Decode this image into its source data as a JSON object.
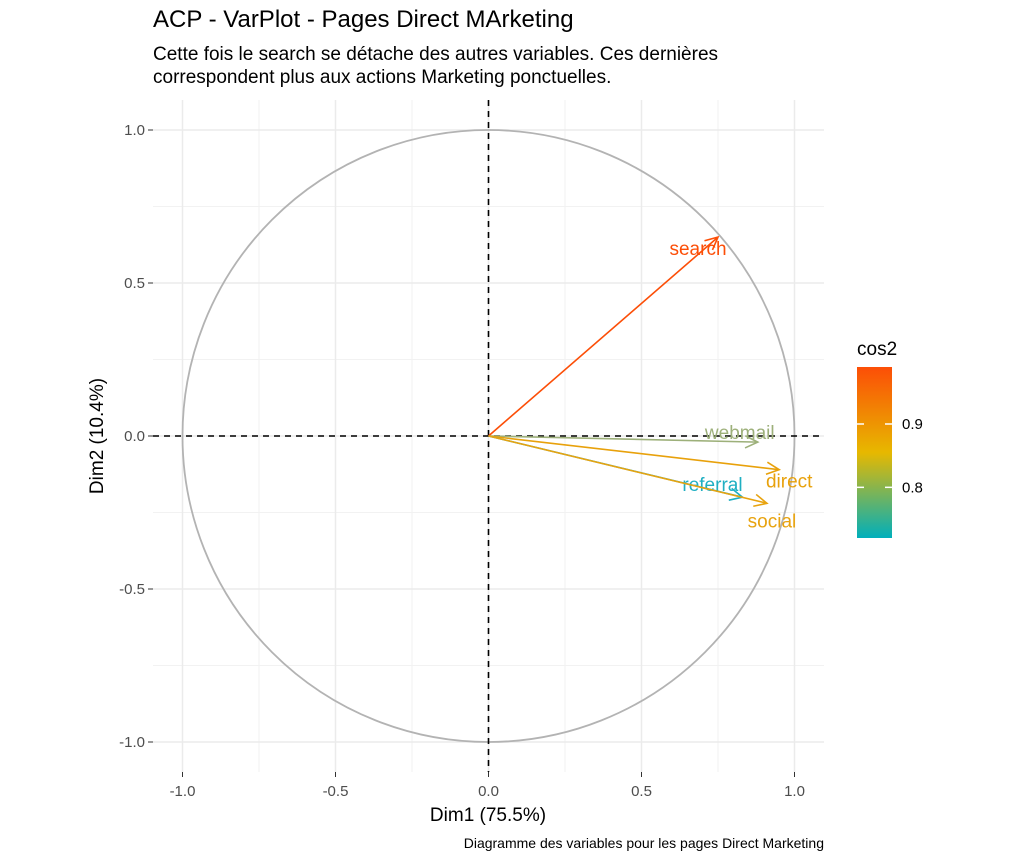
{
  "header": {
    "title": "ACP - VarPlot - Pages Direct MArketing",
    "subtitle_lines": [
      "Cette fois le search se détache des autres variables. Ces dernières",
      "correspondent plus aux actions Marketing ponctuelles."
    ]
  },
  "caption": "Diagramme des variables pour les pages Direct Marketing",
  "chart_data": {
    "type": "scatter",
    "subtype": "pca-variable-correlation-circle",
    "title": "ACP - VarPlot - Pages Direct MArketing",
    "xlabel": "Dim1 (75.5%)",
    "ylabel": "Dim2 (10.4%)",
    "xlim": [
      -1.1,
      1.1
    ],
    "ylim": [
      -1.1,
      1.1
    ],
    "x_ticks": [
      -1.0,
      -0.5,
      0.0,
      0.5,
      1.0
    ],
    "x_tick_labels": [
      "-1.0",
      "-0.5",
      "0.0",
      "0.5",
      "1.0"
    ],
    "y_ticks": [
      1.0,
      0.5,
      0.0,
      -0.5,
      -1.0
    ],
    "y_tick_labels": [
      "1.0",
      "0.5",
      "0.0",
      "-0.5",
      "-1.0"
    ],
    "grid": true,
    "unit_circle": true,
    "variables": [
      {
        "name": "search",
        "x": 0.75,
        "y": 0.65,
        "cos2": 0.99,
        "color": "#FC4E07"
      },
      {
        "name": "webmail",
        "x": 0.88,
        "y": -0.02,
        "cos2": 0.78,
        "color": "#9DB07A"
      },
      {
        "name": "direct",
        "x": 0.95,
        "y": -0.11,
        "cos2": 0.88,
        "color": "#E8A10B"
      },
      {
        "name": "referral",
        "x": 0.83,
        "y": -0.2,
        "cos2": 0.72,
        "color": "#1FAFC2"
      },
      {
        "name": "social",
        "x": 0.91,
        "y": -0.22,
        "cos2": 0.87,
        "color": "#E8A30F"
      }
    ],
    "legend": {
      "title": "cos2",
      "placement": "right",
      "ticks": [
        0.9,
        0.8
      ],
      "tick_labels": [
        "0.9",
        "0.8"
      ],
      "range": [
        0.72,
        0.99
      ],
      "gradient_colors": [
        "#00AFBB",
        "#E7B800",
        "#FC4E07"
      ]
    }
  }
}
